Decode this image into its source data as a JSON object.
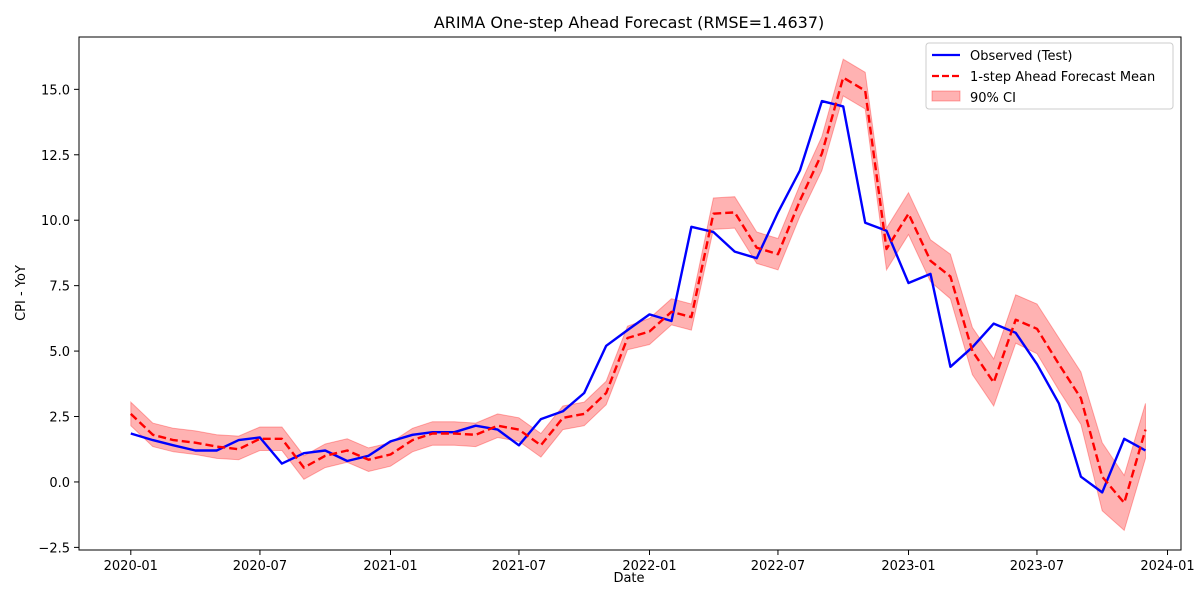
{
  "chart_data": {
    "type": "line",
    "title": "ARIMA One-step Ahead Forecast (RMSE=1.4637)",
    "xlabel": "Date",
    "ylabel": "CPI - YoY",
    "xlim": [
      "2019-10-20",
      "2024-01-20"
    ],
    "ylim": [
      -2.6,
      17.0
    ],
    "grid": false,
    "legend_position": "top-right",
    "x_tick_labels": [
      "2020-01",
      "2020-07",
      "2021-01",
      "2021-07",
      "2022-01",
      "2022-07",
      "2023-01",
      "2023-07",
      "2024-01"
    ],
    "x_tick_dates": [
      "2020-01-01",
      "2020-07-01",
      "2021-01-01",
      "2021-07-01",
      "2022-01-01",
      "2022-07-01",
      "2023-01-01",
      "2023-07-01",
      "2024-01-01"
    ],
    "y_tick_labels": [
      "−2.5",
      "0.0",
      "2.5",
      "5.0",
      "7.5",
      "10.0",
      "12.5",
      "15.0"
    ],
    "y_tick_values": [
      -2.5,
      0.0,
      2.5,
      5.0,
      7.5,
      10.0,
      12.5,
      15.0
    ],
    "x": [
      "2020-01-01",
      "2020-02-01",
      "2020-03-01",
      "2020-04-01",
      "2020-05-01",
      "2020-06-01",
      "2020-07-01",
      "2020-08-01",
      "2020-09-01",
      "2020-10-01",
      "2020-11-01",
      "2020-12-01",
      "2021-01-01",
      "2021-02-01",
      "2021-03-01",
      "2021-04-01",
      "2021-05-01",
      "2021-06-01",
      "2021-07-01",
      "2021-08-01",
      "2021-09-01",
      "2021-10-01",
      "2021-11-01",
      "2021-12-01",
      "2022-01-01",
      "2022-02-01",
      "2022-03-01",
      "2022-04-01",
      "2022-05-01",
      "2022-06-01",
      "2022-07-01",
      "2022-08-01",
      "2022-09-01",
      "2022-10-01",
      "2022-11-01",
      "2022-12-01",
      "2023-01-01",
      "2023-02-01",
      "2023-03-01",
      "2023-04-01",
      "2023-05-01",
      "2023-06-01",
      "2023-07-01",
      "2023-08-01",
      "2023-09-01",
      "2023-10-01",
      "2023-11-01",
      "2023-12-01"
    ],
    "series": [
      {
        "name": "Observed (Test)",
        "color": "#0000ff",
        "style": "solid",
        "values": [
          1.85,
          1.6,
          1.4,
          1.2,
          1.2,
          1.6,
          1.7,
          0.7,
          1.1,
          1.2,
          0.8,
          1.0,
          1.55,
          1.8,
          1.9,
          1.9,
          2.15,
          2.0,
          1.4,
          2.4,
          2.7,
          3.4,
          5.2,
          5.8,
          6.4,
          6.15,
          9.75,
          9.55,
          8.8,
          8.55,
          10.3,
          11.9,
          14.55,
          14.35,
          9.9,
          9.6,
          7.6,
          7.95,
          4.4,
          5.15,
          6.05,
          5.7,
          4.5,
          3.0,
          0.2,
          -0.4,
          1.65,
          1.2
        ]
      },
      {
        "name": "1-step Ahead Forecast Mean",
        "color": "#ff0000",
        "style": "dashed",
        "values": [
          2.6,
          1.8,
          1.6,
          1.5,
          1.35,
          1.25,
          1.65,
          1.65,
          0.55,
          1.0,
          1.2,
          0.85,
          1.05,
          1.6,
          1.85,
          1.85,
          1.8,
          2.15,
          2.0,
          1.4,
          2.45,
          2.6,
          3.4,
          5.5,
          5.75,
          6.5,
          6.3,
          10.25,
          10.3,
          8.95,
          8.7,
          10.75,
          12.55,
          15.45,
          14.95,
          8.9,
          10.25,
          8.45,
          7.85,
          5.0,
          3.8,
          6.2,
          5.85,
          4.5,
          3.2,
          0.2,
          -0.8,
          2.0
        ]
      }
    ],
    "ci_band": {
      "name": "90% CI",
      "color": "#ff0000",
      "opacity": 0.3,
      "lower": [
        2.15,
        1.35,
        1.15,
        1.05,
        0.9,
        0.85,
        1.2,
        1.2,
        0.1,
        0.55,
        0.75,
        0.4,
        0.6,
        1.15,
        1.4,
        1.4,
        1.35,
        1.7,
        1.55,
        0.95,
        2.0,
        2.15,
        2.95,
        5.05,
        5.25,
        6.0,
        5.8,
        9.65,
        9.7,
        8.35,
        8.1,
        10.15,
        11.9,
        14.75,
        14.25,
        8.1,
        9.45,
        7.65,
        7.0,
        4.1,
        2.9,
        5.3,
        4.9,
        3.5,
        2.2,
        -1.1,
        -1.85,
        0.9
      ],
      "upper": [
        3.05,
        2.25,
        2.05,
        1.95,
        1.8,
        1.75,
        2.1,
        2.1,
        1.0,
        1.45,
        1.65,
        1.3,
        1.5,
        2.05,
        2.3,
        2.3,
        2.25,
        2.6,
        2.45,
        1.85,
        2.9,
        3.05,
        3.85,
        5.95,
        6.25,
        7.0,
        6.8,
        10.85,
        10.9,
        9.55,
        9.3,
        11.35,
        13.2,
        16.15,
        15.65,
        9.7,
        11.05,
        9.25,
        8.7,
        5.9,
        4.7,
        7.15,
        6.8,
        5.5,
        4.2,
        1.5,
        0.25,
        3.0
      ]
    }
  }
}
